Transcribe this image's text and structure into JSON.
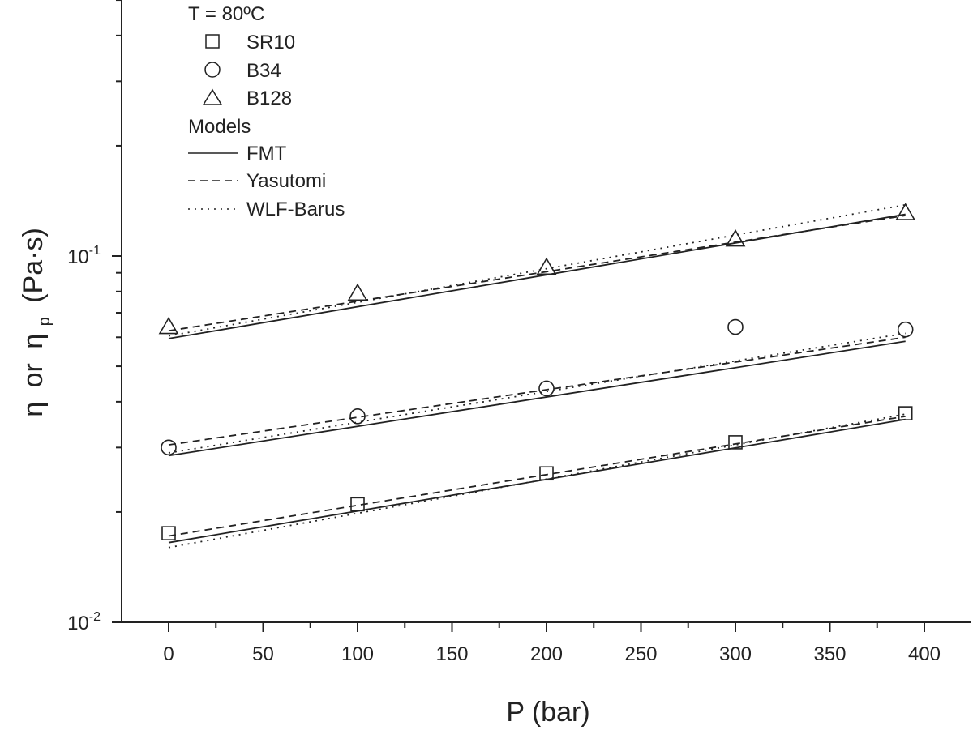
{
  "chart_data": {
    "type": "scatter",
    "xlabel": "P (bar)",
    "ylabel": {
      "eta": "η",
      "or": "or",
      "etap": "η",
      "sub": "p",
      "unit": "(Pa·s)"
    },
    "x_ticks": [
      "0",
      "50",
      "100",
      "150",
      "200",
      "250",
      "300",
      "350",
      "400"
    ],
    "y_ticks": [
      {
        "base": "10",
        "exp": "-2",
        "value": 0.01
      },
      {
        "base": "10",
        "exp": "-1",
        "value": 0.1
      }
    ],
    "xlim": [
      -25,
      425
    ],
    "ylim": [
      0.01,
      0.5
    ],
    "y_scale": "log",
    "legend": {
      "title": "T = 80ºC",
      "models_header": "Models",
      "placement": "top-left"
    },
    "series": [
      {
        "name": "SR10",
        "marker": "square",
        "x": [
          0,
          100,
          200,
          300,
          390
        ],
        "y": [
          0.0175,
          0.021,
          0.0255,
          0.031,
          0.0372
        ]
      },
      {
        "name": "B34",
        "marker": "circle",
        "x": [
          0,
          100,
          200,
          300,
          390
        ],
        "y": [
          0.03,
          0.0365,
          0.0435,
          0.064,
          0.063
        ]
      },
      {
        "name": "B128",
        "marker": "triangle",
        "x": [
          0,
          100,
          200,
          300,
          390
        ],
        "y": [
          0.064,
          0.079,
          0.093,
          0.111,
          0.131
        ]
      }
    ],
    "models": [
      {
        "name": "FMT",
        "style": "solid",
        "lines": [
          {
            "x": [
              0,
              390
            ],
            "y": [
              0.0165,
              0.0358
            ]
          },
          {
            "x": [
              0,
              390
            ],
            "y": [
              0.0285,
              0.0585
            ]
          },
          {
            "x": [
              0,
              390
            ],
            "y": [
              0.0595,
              0.13
            ]
          }
        ]
      },
      {
        "name": "Yasutomi",
        "style": "dashed",
        "lines": [
          {
            "x": [
              0,
              390
            ],
            "y": [
              0.0172,
              0.0365
            ]
          },
          {
            "x": [
              0,
              390
            ],
            "y": [
              0.0305,
              0.06
            ]
          },
          {
            "x": [
              0,
              390
            ],
            "y": [
              0.0625,
              0.129
            ]
          }
        ]
      },
      {
        "name": "WLF-Barus",
        "style": "dotted",
        "lines": [
          {
            "x": [
              0,
              390
            ],
            "y": [
              0.016,
              0.037
            ]
          },
          {
            "x": [
              0,
              390
            ],
            "y": [
              0.029,
              0.0615
            ]
          },
          {
            "x": [
              0,
              390
            ],
            "y": [
              0.0605,
              0.138
            ]
          }
        ]
      }
    ]
  }
}
